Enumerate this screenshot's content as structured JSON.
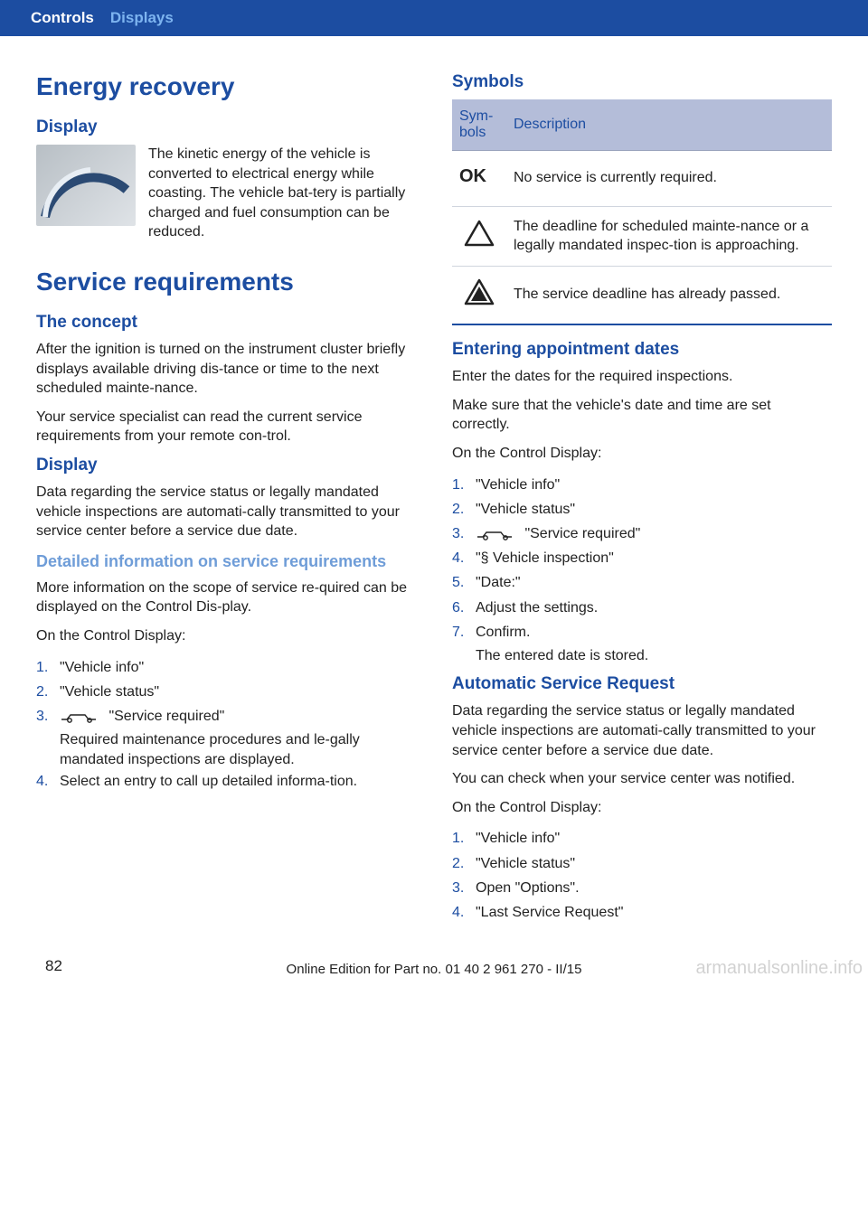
{
  "header": {
    "tab1": "Controls",
    "tab2": "Displays"
  },
  "colors": {
    "primary": "#1c4da1",
    "subheading": "#6f9dd8",
    "table_header_bg": "#b4bdd9",
    "table_border": "#d0d5de"
  },
  "left": {
    "h1_energy": "Energy recovery",
    "h2_display": "Display",
    "energy_para": "The kinetic energy of the vehicle is converted to electrical energy while coasting. The vehicle bat‐tery is partially charged and fuel consumption can be reduced.",
    "h1_service": "Service requirements",
    "h2_concept": "The concept",
    "concept_p1": "After the ignition is turned on the instrument cluster briefly displays available driving dis‐tance or time to the next scheduled mainte‐nance.",
    "concept_p2": "Your service specialist can read the current service requirements from your remote con‐trol.",
    "h2_display2": "Display",
    "display2_p": "Data regarding the service status or legally mandated vehicle inspections are automati‐cally transmitted to your service center before a service due date.",
    "h3_detailed": "Detailed information on service requirements",
    "detailed_p1": "More information on the scope of service re‐quired can be displayed on the Control Dis‐play.",
    "detailed_p2": "On the Control Display:",
    "list1": [
      {
        "n": "1.",
        "t": "\"Vehicle info\""
      },
      {
        "n": "2.",
        "t": "\"Vehicle status\""
      },
      {
        "n": "3.",
        "t": " \"Service required\"",
        "icon": true,
        "sub": "Required maintenance procedures and le‐gally mandated inspections are displayed."
      },
      {
        "n": "4.",
        "t": "Select an entry to call up detailed informa‐tion."
      }
    ]
  },
  "right": {
    "h2_symbols": "Symbols",
    "table": {
      "head_sym": "Sym‐bols",
      "head_desc": "Description",
      "rows": [
        {
          "icon": "ok",
          "desc": "No service is currently required."
        },
        {
          "icon": "triangle",
          "desc": "The deadline for scheduled mainte‐nance or a legally mandated inspec‐tion is approaching."
        },
        {
          "icon": "triangle-filled",
          "desc": "The service deadline has already passed."
        }
      ]
    },
    "h2_entering": "Entering appointment dates",
    "entering_p1": "Enter the dates for the required inspections.",
    "entering_p2": "Make sure that the vehicle's date and time are set correctly.",
    "entering_p3": "On the Control Display:",
    "list2": [
      {
        "n": "1.",
        "t": "\"Vehicle info\""
      },
      {
        "n": "2.",
        "t": "\"Vehicle status\""
      },
      {
        "n": "3.",
        "t": " \"Service required\"",
        "icon": true
      },
      {
        "n": "4.",
        "t": "\"§ Vehicle inspection\""
      },
      {
        "n": "5.",
        "t": "\"Date:\""
      },
      {
        "n": "6.",
        "t": "Adjust the settings."
      },
      {
        "n": "7.",
        "t": "Confirm.",
        "sub": "The entered date is stored."
      }
    ],
    "h2_auto": "Automatic Service Request",
    "auto_p1": "Data regarding the service status or legally mandated vehicle inspections are automati‐cally transmitted to your service center before a service due date.",
    "auto_p2": "You can check when your service center was notified.",
    "auto_p3": "On the Control Display:",
    "list3": [
      {
        "n": "1.",
        "t": "\"Vehicle info\""
      },
      {
        "n": "2.",
        "t": "\"Vehicle status\""
      },
      {
        "n": "3.",
        "t": "Open \"Options\"."
      },
      {
        "n": "4.",
        "t": "\"Last Service Request\""
      }
    ]
  },
  "footer": {
    "page": "82",
    "mid": "Online Edition for Part no. 01 40 2 961 270 - II/15",
    "watermark": "armanualsonline.info"
  }
}
